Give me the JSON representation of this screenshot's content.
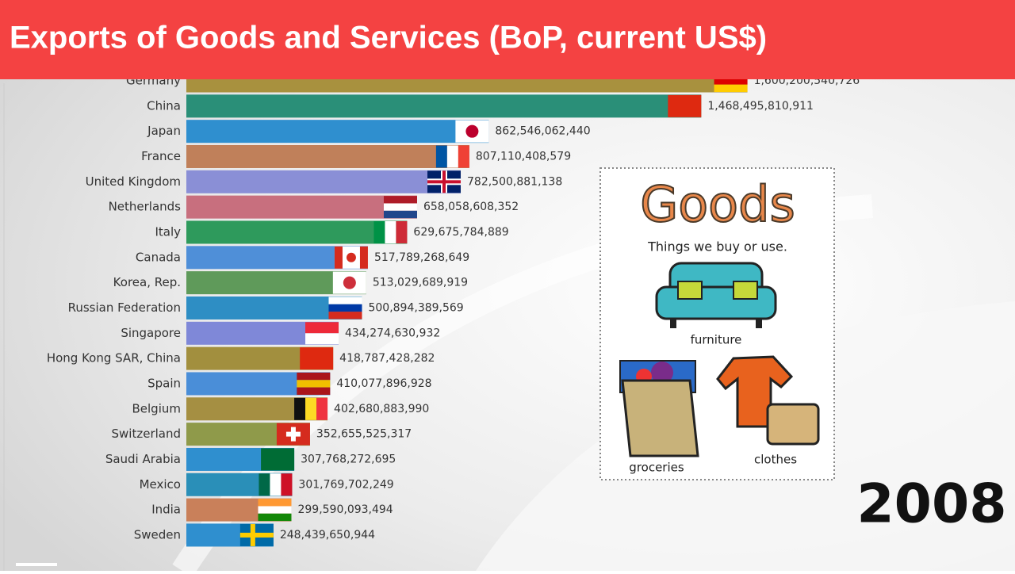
{
  "chart_data": {
    "type": "bar",
    "orientation": "horizontal",
    "title": "Exports of Goods and Services  (BoP, current US$)",
    "annotation": "2008",
    "categories": [
      "Germany",
      "China",
      "Japan",
      "France",
      "United Kingdom",
      "Netherlands",
      "Italy",
      "Canada",
      "Korea, Rep.",
      "Russian Federation",
      "Singapore",
      "Hong Kong SAR, China",
      "Spain",
      "Belgium",
      "Switzerland",
      "Saudi Arabia",
      "Mexico",
      "India",
      "Sweden"
    ],
    "values": [
      1600200540726,
      1468495810911,
      862546062440,
      807110408579,
      782500881138,
      658058608352,
      629675784889,
      517789268649,
      513029689919,
      500894389569,
      434274630932,
      418787428282,
      410077896928,
      402680883990,
      352655525317,
      307768272695,
      301769702249,
      299590093494,
      248439650944
    ],
    "value_labels": [
      "1,600,200,540,726",
      "1,468,495,810,911",
      "862,546,062,440",
      "807,110,408,579",
      "782,500,881,138",
      "658,058,608,352",
      "629,675,784,889",
      "517,789,268,649",
      "513,029,689,919",
      "500,894,389,569",
      "434,274,630,932",
      "418,787,428,282",
      "410,077,896,928",
      "402,680,883,990",
      "352,655,525,317",
      "307,768,272,695",
      "301,769,702,249",
      "299,590,093,494",
      "248,439,650,944"
    ],
    "colors": [
      "#a8913e",
      "#2a8f78",
      "#2f8fcf",
      "#c0805a",
      "#8a8fd6",
      "#c86f7e",
      "#2e9a5c",
      "#4f8fd8",
      "#5f9a5a",
      "#2e8ec4",
      "#7f88d8",
      "#a28f3e",
      "#4a8ed8",
      "#a58f42",
      "#8f9a4a",
      "#2f8fcf",
      "#2a8fb8",
      "#c9805a",
      "#2f8fcf"
    ],
    "xlim": [
      0,
      2300000000000
    ]
  },
  "inset": {
    "title": "Goods",
    "subtitle": "Things we buy or use.",
    "labels": [
      "furniture",
      "groceries",
      "clothes"
    ]
  }
}
